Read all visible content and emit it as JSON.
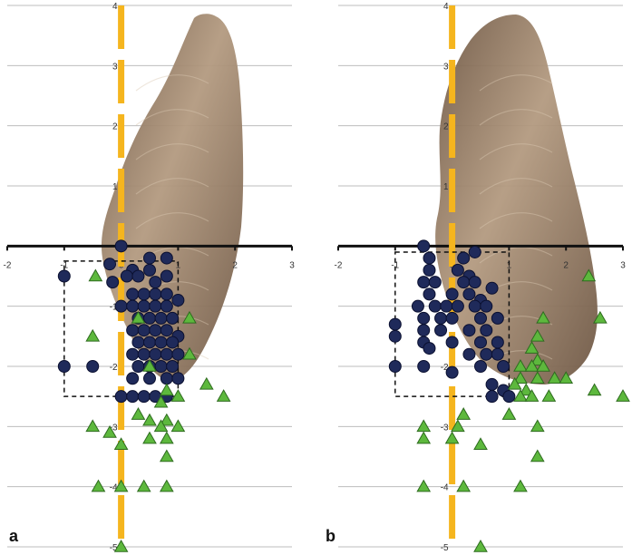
{
  "colors": {
    "circle_fill": "#1f2a5a",
    "circle_stroke": "#0b1030",
    "triangle_fill": "#5db83d",
    "triangle_stroke": "#2e6b1f",
    "midline": "#f5b51e",
    "axis": "#111111",
    "grid": "#bdbdbd",
    "specimen_light": "#b39a80",
    "specimen_dark": "#6e5744"
  },
  "chart_data": [
    {
      "type": "scatter",
      "panel_label": "a",
      "title": "",
      "xlabel": "",
      "ylabel": "",
      "xlim": [
        -2,
        3
      ],
      "ylim": [
        -5,
        4
      ],
      "x_ticks": [
        -2,
        -1,
        0,
        1,
        2,
        3
      ],
      "y_ticks": [
        4,
        3,
        2,
        1,
        -1,
        -2,
        -3,
        -4,
        -5
      ],
      "grid": true,
      "midline_x": 0,
      "dashed_box": {
        "x_min": -1,
        "x_max": 1,
        "y_min": -2.5,
        "y_max": -0.25
      },
      "series": [
        {
          "marker": "circle",
          "points": [
            [
              -1,
              -0.5
            ],
            [
              0,
              0
            ],
            [
              -0.2,
              -0.3
            ],
            [
              0.2,
              -0.4
            ],
            [
              0.5,
              -0.2
            ],
            [
              0.8,
              -0.2
            ],
            [
              -0.15,
              -0.6
            ],
            [
              0.1,
              -0.5
            ],
            [
              0.3,
              -0.5
            ],
            [
              0.5,
              -0.4
            ],
            [
              0.6,
              -0.6
            ],
            [
              0.8,
              -0.5
            ],
            [
              0.2,
              -0.8
            ],
            [
              0.4,
              -0.8
            ],
            [
              0.6,
              -0.8
            ],
            [
              0.8,
              -0.8
            ],
            [
              1,
              -0.9
            ],
            [
              0,
              -1
            ],
            [
              0.2,
              -1
            ],
            [
              0.4,
              -1
            ],
            [
              0.6,
              -1
            ],
            [
              0.8,
              -1
            ],
            [
              0.3,
              -1.2
            ],
            [
              0.5,
              -1.2
            ],
            [
              0.7,
              -1.2
            ],
            [
              0.9,
              -1.2
            ],
            [
              0.2,
              -1.4
            ],
            [
              0.4,
              -1.4
            ],
            [
              0.6,
              -1.4
            ],
            [
              0.8,
              -1.4
            ],
            [
              1,
              -1.5
            ],
            [
              0.3,
              -1.6
            ],
            [
              0.5,
              -1.6
            ],
            [
              0.7,
              -1.6
            ],
            [
              0.9,
              -1.6
            ],
            [
              0.2,
              -1.8
            ],
            [
              0.4,
              -1.8
            ],
            [
              0.6,
              -1.8
            ],
            [
              0.8,
              -1.8
            ],
            [
              1,
              -1.8
            ],
            [
              0.3,
              -2
            ],
            [
              0.5,
              -2
            ],
            [
              0.7,
              -2
            ],
            [
              0.9,
              -2
            ],
            [
              0.2,
              -2.2
            ],
            [
              0.5,
              -2.2
            ],
            [
              0.8,
              -2.2
            ],
            [
              1,
              -2.2
            ],
            [
              -1,
              -2
            ],
            [
              -0.5,
              -2
            ],
            [
              0,
              -2.5
            ],
            [
              0.2,
              -2.5
            ],
            [
              0.4,
              -2.5
            ],
            [
              0.6,
              -2.5
            ],
            [
              0.8,
              -2.5
            ]
          ]
        },
        {
          "marker": "triangle",
          "points": [
            [
              -0.45,
              -0.5
            ],
            [
              0.3,
              -1.2
            ],
            [
              1.2,
              -1.2
            ],
            [
              -0.5,
              -1.5
            ],
            [
              0.5,
              -2
            ],
            [
              1.2,
              -1.8
            ],
            [
              1.5,
              -2.3
            ],
            [
              0.8,
              -2.4
            ],
            [
              1,
              -2.5
            ],
            [
              1.8,
              -2.5
            ],
            [
              0.7,
              -2.6
            ],
            [
              0.3,
              -2.8
            ],
            [
              0.5,
              -2.9
            ],
            [
              0.8,
              -2.9
            ],
            [
              -0.5,
              -3
            ],
            [
              0.7,
              -3
            ],
            [
              1,
              -3
            ],
            [
              -0.2,
              -3.1
            ],
            [
              0.5,
              -3.2
            ],
            [
              0.8,
              -3.2
            ],
            [
              0,
              -3.3
            ],
            [
              0.8,
              -3.5
            ],
            [
              -0.4,
              -4
            ],
            [
              0,
              -4
            ],
            [
              0.4,
              -4
            ],
            [
              0.8,
              -4
            ],
            [
              0,
              -5
            ]
          ]
        }
      ]
    },
    {
      "type": "scatter",
      "panel_label": "b",
      "title": "",
      "xlabel": "",
      "ylabel": "",
      "xlim": [
        -2,
        3
      ],
      "ylim": [
        -5,
        4
      ],
      "x_ticks": [
        -2,
        -1,
        0,
        1,
        2,
        3
      ],
      "y_ticks": [
        4,
        3,
        2,
        1,
        -1,
        -2,
        -3,
        -4,
        -5
      ],
      "grid": true,
      "midline_x": 0,
      "dashed_box": {
        "x_min": -1,
        "x_max": 1,
        "y_min": -2.5,
        "y_max": -0.1
      },
      "series": [
        {
          "marker": "circle",
          "points": [
            [
              -0.5,
              0
            ],
            [
              -0.4,
              -0.2
            ],
            [
              0.2,
              -0.2
            ],
            [
              0.4,
              -0.1
            ],
            [
              -0.4,
              -0.4
            ],
            [
              0.1,
              -0.4
            ],
            [
              0.3,
              -0.5
            ],
            [
              -0.5,
              -0.6
            ],
            [
              -0.3,
              -0.6
            ],
            [
              0.2,
              -0.6
            ],
            [
              0.4,
              -0.6
            ],
            [
              0.7,
              -0.7
            ],
            [
              -0.4,
              -0.8
            ],
            [
              0,
              -0.8
            ],
            [
              0.3,
              -0.8
            ],
            [
              0.5,
              -0.9
            ],
            [
              -0.6,
              -1
            ],
            [
              -0.3,
              -1
            ],
            [
              -0.1,
              -1
            ],
            [
              0.1,
              -1
            ],
            [
              0.4,
              -1
            ],
            [
              0.6,
              -1
            ],
            [
              -0.5,
              -1.2
            ],
            [
              -0.2,
              -1.2
            ],
            [
              0,
              -1.2
            ],
            [
              0.5,
              -1.2
            ],
            [
              0.8,
              -1.2
            ],
            [
              -1,
              -1.3
            ],
            [
              -0.5,
              -1.4
            ],
            [
              -0.2,
              -1.4
            ],
            [
              0.3,
              -1.4
            ],
            [
              0.6,
              -1.4
            ],
            [
              -1,
              -1.5
            ],
            [
              -0.5,
              -1.6
            ],
            [
              0,
              -1.6
            ],
            [
              0.5,
              -1.6
            ],
            [
              0.8,
              -1.6
            ],
            [
              -0.4,
              -1.7
            ],
            [
              0.3,
              -1.8
            ],
            [
              0.6,
              -1.8
            ],
            [
              0.8,
              -1.8
            ],
            [
              -1,
              -2
            ],
            [
              -0.5,
              -2
            ],
            [
              0,
              -2.1
            ],
            [
              0.5,
              -2
            ],
            [
              0.9,
              -2
            ],
            [
              0.7,
              -2.3
            ],
            [
              0.9,
              -2.4
            ],
            [
              0.7,
              -2.5
            ],
            [
              1,
              -2.5
            ]
          ]
        },
        {
          "marker": "triangle",
          "points": [
            [
              2.4,
              -0.5
            ],
            [
              2.6,
              -1.2
            ],
            [
              1.6,
              -1.2
            ],
            [
              1.5,
              -1.5
            ],
            [
              1.4,
              -1.7
            ],
            [
              1.5,
              -1.9
            ],
            [
              1.2,
              -2
            ],
            [
              1.4,
              -2
            ],
            [
              1.6,
              -2
            ],
            [
              1.2,
              -2.2
            ],
            [
              1.5,
              -2.2
            ],
            [
              1.8,
              -2.2
            ],
            [
              2,
              -2.2
            ],
            [
              1.1,
              -2.3
            ],
            [
              1.3,
              -2.4
            ],
            [
              2.5,
              -2.4
            ],
            [
              1.2,
              -2.5
            ],
            [
              1.4,
              -2.5
            ],
            [
              1.7,
              -2.5
            ],
            [
              3,
              -2.5
            ],
            [
              0.2,
              -2.8
            ],
            [
              1,
              -2.8
            ],
            [
              -0.5,
              -3
            ],
            [
              0.1,
              -3
            ],
            [
              1.5,
              -3
            ],
            [
              -0.5,
              -3.2
            ],
            [
              0,
              -3.2
            ],
            [
              0.5,
              -3.3
            ],
            [
              1.5,
              -3.5
            ],
            [
              -0.5,
              -4
            ],
            [
              0.2,
              -4
            ],
            [
              1.2,
              -4
            ],
            [
              0.5,
              -5
            ]
          ]
        }
      ]
    }
  ]
}
